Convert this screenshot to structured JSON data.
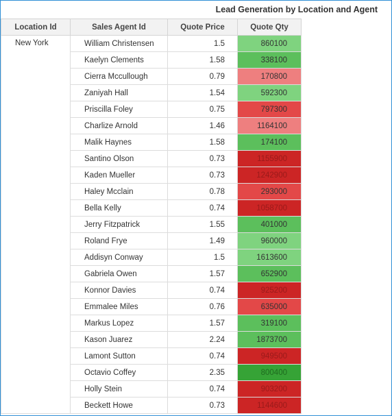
{
  "title": "Lead Generation by Location and Agent",
  "columns": {
    "location": "Location Id",
    "agent": "Sales Agent Id",
    "price": "Quote Price",
    "qty": "Quote Qty"
  },
  "location": "New York",
  "colors": {
    "light_green": "#7fd37f",
    "green": "#5cbf5c",
    "dark_green": "#36a336",
    "light_red": "#ee7f7f",
    "red": "#e34848",
    "dark_red": "#cc2525"
  },
  "rows": [
    {
      "agent": "William Christensen",
      "price": "1.5",
      "qty": "860100",
      "color": "#7fd37f",
      "text": "#333333"
    },
    {
      "agent": "Kaelyn Clements",
      "price": "1.58",
      "qty": "338100",
      "color": "#5cbf5c",
      "text": "#333333"
    },
    {
      "agent": "Cierra Mccullough",
      "price": "0.79",
      "qty": "170800",
      "color": "#ee7f7f",
      "text": "#333333"
    },
    {
      "agent": "Zaniyah Hall",
      "price": "1.54",
      "qty": "592300",
      "color": "#7fd37f",
      "text": "#333333"
    },
    {
      "agent": "Priscilla Foley",
      "price": "0.75",
      "qty": "797300",
      "color": "#e34848",
      "text": "#333333"
    },
    {
      "agent": "Charlize Arnold",
      "price": "1.46",
      "qty": "1164100",
      "color": "#ee7f7f",
      "text": "#333333"
    },
    {
      "agent": "Malik Haynes",
      "price": "1.58",
      "qty": "174100",
      "color": "#5cbf5c",
      "text": "#333333"
    },
    {
      "agent": "Santino Olson",
      "price": "0.73",
      "qty": "1155900",
      "color": "#cc2525",
      "text": "#9a1a1a"
    },
    {
      "agent": "Kaden Mueller",
      "price": "0.73",
      "qty": "1242900",
      "color": "#cc2525",
      "text": "#9a1a1a"
    },
    {
      "agent": "Haley Mcclain",
      "price": "0.78",
      "qty": "293000",
      "color": "#e34848",
      "text": "#333333"
    },
    {
      "agent": "Bella Kelly",
      "price": "0.74",
      "qty": "1058700",
      "color": "#cc2525",
      "text": "#9a1a1a"
    },
    {
      "agent": "Jerry Fitzpatrick",
      "price": "1.55",
      "qty": "401000",
      "color": "#5cbf5c",
      "text": "#333333"
    },
    {
      "agent": "Roland Frye",
      "price": "1.49",
      "qty": "960000",
      "color": "#7fd37f",
      "text": "#333333"
    },
    {
      "agent": "Addisyn Conway",
      "price": "1.5",
      "qty": "1613600",
      "color": "#7fd37f",
      "text": "#333333"
    },
    {
      "agent": "Gabriela Owen",
      "price": "1.57",
      "qty": "652900",
      "color": "#5cbf5c",
      "text": "#333333"
    },
    {
      "agent": "Konnor Davies",
      "price": "0.74",
      "qty": "925200",
      "color": "#cc2525",
      "text": "#9a1a1a"
    },
    {
      "agent": "Emmalee Miles",
      "price": "0.76",
      "qty": "635000",
      "color": "#e34848",
      "text": "#333333"
    },
    {
      "agent": "Markus Lopez",
      "price": "1.57",
      "qty": "319100",
      "color": "#5cbf5c",
      "text": "#333333"
    },
    {
      "agent": "Kason Juarez",
      "price": "2.24",
      "qty": "1873700",
      "color": "#5cbf5c",
      "text": "#333333"
    },
    {
      "agent": "Lamont Sutton",
      "price": "0.74",
      "qty": "949500",
      "color": "#cc2525",
      "text": "#9a1a1a"
    },
    {
      "agent": "Octavio Coffey",
      "price": "2.35",
      "qty": "800400",
      "color": "#36a336",
      "text": "#1f6b1f"
    },
    {
      "agent": "Holly Stein",
      "price": "0.74",
      "qty": "903200",
      "color": "#cc2525",
      "text": "#9a1a1a"
    },
    {
      "agent": "Beckett Howe",
      "price": "0.73",
      "qty": "1144600",
      "color": "#cc2525",
      "text": "#9a1a1a"
    }
  ]
}
